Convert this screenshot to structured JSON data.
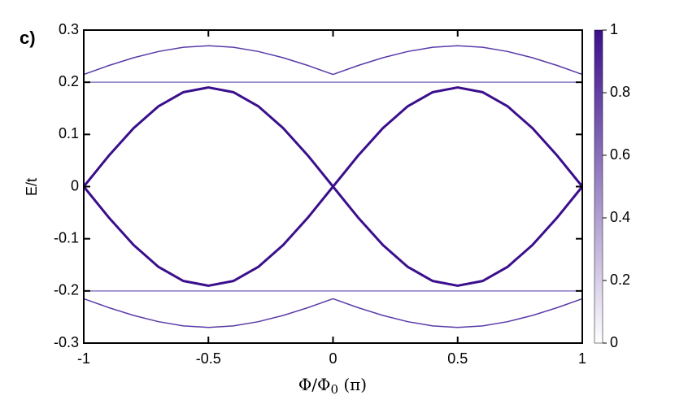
{
  "chart_data": {
    "type": "line",
    "panel_label": "c)",
    "y_label": "E/t",
    "x_label_parts": [
      "Φ/Φ",
      "0",
      " (π)"
    ],
    "x": [
      -1,
      -0.9,
      -0.8,
      -0.7,
      -0.6,
      -0.5,
      -0.4,
      -0.3,
      -0.2,
      -0.1,
      0,
      0.1,
      0.2,
      0.3,
      0.4,
      0.5,
      0.6,
      0.7,
      0.8,
      0.9,
      1
    ],
    "series": [
      {
        "color": "#3b0f8c",
        "values": [
          0,
          0.059,
          0.112,
          0.154,
          0.181,
          0.19,
          0.181,
          0.154,
          0.112,
          0.059,
          0,
          0.059,
          0.112,
          0.154,
          0.181,
          0.19,
          0.181,
          0.154,
          0.112,
          0.059,
          0
        ]
      },
      {
        "color": "#3b0f8c",
        "values": [
          0,
          -0.059,
          -0.112,
          -0.154,
          -0.181,
          -0.19,
          -0.181,
          -0.154,
          -0.112,
          -0.059,
          0,
          -0.059,
          -0.112,
          -0.154,
          -0.181,
          -0.19,
          -0.181,
          -0.154,
          -0.112,
          -0.059,
          0
        ]
      },
      {
        "color": "#5a3aa8",
        "values": [
          0.215,
          0.232,
          0.247,
          0.259,
          0.267,
          0.27,
          0.267,
          0.259,
          0.247,
          0.232,
          0.215,
          0.232,
          0.247,
          0.259,
          0.267,
          0.27,
          0.267,
          0.259,
          0.247,
          0.232,
          0.215
        ]
      },
      {
        "color": "#5a3aa8",
        "values": [
          -0.215,
          -0.232,
          -0.247,
          -0.259,
          -0.267,
          -0.27,
          -0.267,
          -0.259,
          -0.247,
          -0.232,
          -0.215,
          -0.232,
          -0.247,
          -0.259,
          -0.267,
          -0.27,
          -0.267,
          -0.259,
          -0.247,
          -0.232,
          -0.215
        ]
      },
      {
        "color": "#8a78c4",
        "values": [
          0.2,
          0.2,
          0.2,
          0.2,
          0.2,
          0.2,
          0.2,
          0.2,
          0.2,
          0.2,
          0.2,
          0.2,
          0.2,
          0.2,
          0.2,
          0.2,
          0.2,
          0.2,
          0.2,
          0.2,
          0.2
        ]
      },
      {
        "color": "#8a78c4",
        "values": [
          -0.2,
          -0.2,
          -0.2,
          -0.2,
          -0.2,
          -0.2,
          -0.2,
          -0.2,
          -0.2,
          -0.2,
          -0.2,
          -0.2,
          -0.2,
          -0.2,
          -0.2,
          -0.2,
          -0.2,
          -0.2,
          -0.2,
          -0.2,
          -0.2
        ]
      }
    ],
    "xlim": [
      -1,
      1
    ],
    "xticks": [
      -1,
      -0.5,
      0,
      0.5,
      1
    ],
    "ylim": [
      -0.3,
      0.3
    ],
    "yticks": [
      -0.3,
      -0.2,
      -0.1,
      0,
      0.1,
      0.2,
      0.3
    ],
    "colorbar": {
      "clim": [
        0,
        1
      ],
      "ticks": [
        0,
        0.2,
        0.4,
        0.6,
        0.8,
        1
      ],
      "colors": [
        "#ffffff",
        "#3b0f8c"
      ]
    }
  }
}
